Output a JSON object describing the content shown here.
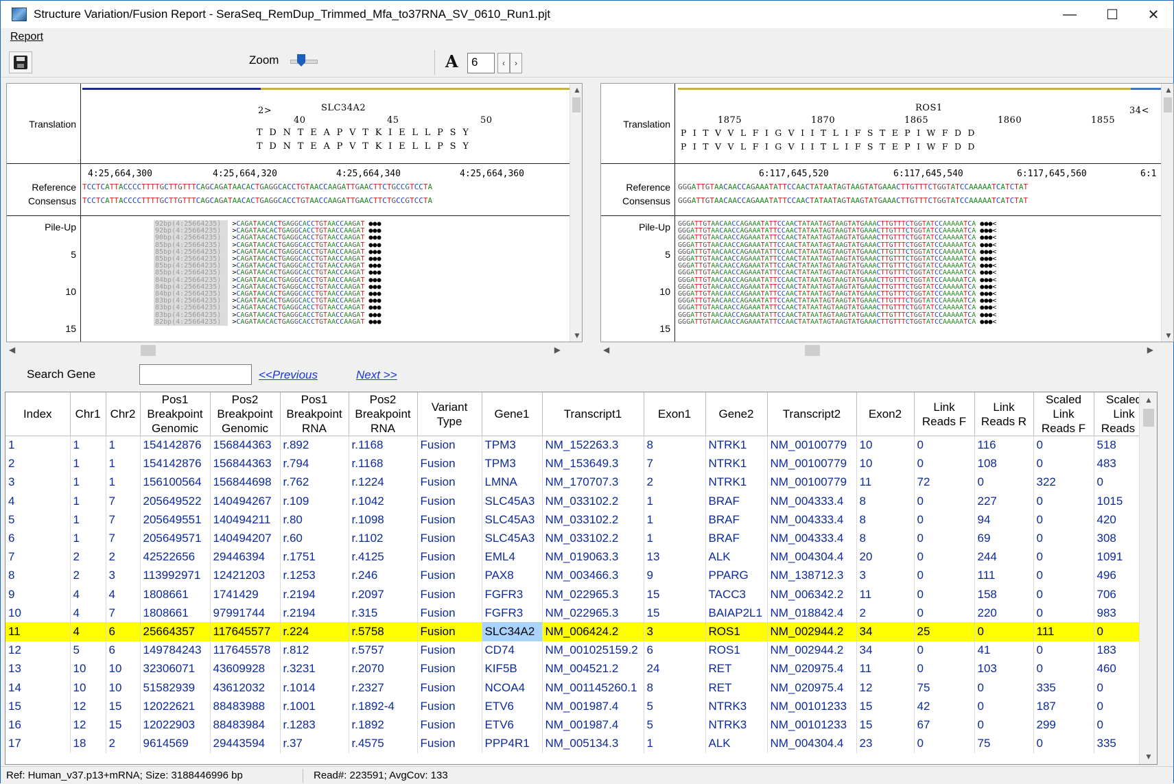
{
  "window": {
    "title": "Structure Variation/Fusion Report - SeraSeq_RemDup_Trimmed_Mfa_to37RNA_SV_0610_Run1.pjt",
    "minimize": "—",
    "maximize": "☐",
    "close": "✕"
  },
  "menu": {
    "report": "Report"
  },
  "toolbar": {
    "zoom_label": "Zoom",
    "font_icon": "A",
    "font_size": "6",
    "spin_left": "‹",
    "spin_right": "›"
  },
  "left_pane": {
    "label_translation": "Translation",
    "label_reference": "Reference",
    "label_consensus": "Consensus",
    "label_pileup": "Pile-Up",
    "row_numbers": [
      "5",
      "10",
      "15"
    ],
    "gene_marker": "2>",
    "gene": "SLC34A2",
    "aa_positions": [
      "40",
      "45",
      "50"
    ],
    "aa_row": "T  D  N  T  E  A  P  V  T  K  I  E  L  L  P  S  Y",
    "coords": [
      "4:25,664,300",
      "4:25,664,320",
      "4:25,664,340",
      "4:25,664,360"
    ],
    "reference": "TCCTCATTACCCCTTTTGCTTGTTTCAGCAGATAACACTGAGGCACCTGTAACCAAGATTGAACTTCTGCCGTCCTA",
    "consensus": "TCCTCATTACCCCTTTTGCTTGTTTCAGCAGATAACACTGAGGCACCTGTAACCAAGATTGAACTTCTGCCGTCCTA",
    "pile_labels": [
      "92bp(4:25664235)",
      "92bp(4:25664235)",
      "90bp(4:25664235)",
      "85bp(4:25664235)",
      "85bp(4:25664235)",
      "85bp(4:25664235)",
      "85bp(4:25664235)",
      "85bp(4:25664235)",
      "84bp(4:25664235)",
      "84bp(4:25664235)",
      "84bp(4:25664235)",
      "83bp(4:25664235)",
      "83bp(4:25664235)",
      "83bp(4:25664235)",
      "82bp(4:25664235)"
    ],
    "pile_read": ">CAGATAACACTGAGGCACCTGTAACCAAGAT ●●●"
  },
  "right_pane": {
    "label_translation": "Translation",
    "label_reference": "Reference",
    "label_consensus": "Consensus",
    "label_pileup": "Pile-Up",
    "row_numbers": [
      "5",
      "10",
      "15"
    ],
    "gene_marker": "34<",
    "gene": "ROS1",
    "aa_positions": [
      "1875",
      "1870",
      "1865",
      "1860",
      "1855"
    ],
    "aa_row": "P  I  T  V  V  L  F  I  G  V  I  I  T  L  I  F  S  T  E  P  I  W  F  D  D",
    "coords": [
      "6:117,645,520",
      "6:117,645,540",
      "6:117,645,560",
      "6:1"
    ],
    "reference": "GGGATTGTAACAACCAGAAATATTCCAACTATAATAGTAAGTATGAAACTTGTTTCTGGTATCCAAAAATCATCTAT",
    "consensus": "GGGATTGTAACAACCAGAAATATTCCAACTATAATAGTAAGTATGAAACTTGTTTCTGGTATCCAAAAATCATCTAT",
    "pile_read": "GGGATTGTAACAACCAGAAATATTCCAACTATAATAGTAAGTATGAAACTTGTTTCTGGTATCCAAAAATCA ●●●<"
  },
  "search": {
    "label": "Search Gene",
    "value": "",
    "previous": "<<Previous",
    "next": "Next >>"
  },
  "table": {
    "columns": [
      "Index",
      "Chr1",
      "Chr2",
      "Pos1 Breakpoint Genomic",
      "Pos2 Breakpoint Genomic",
      "Pos1 Breakpoint RNA",
      "Pos2 Breakpoint RNA",
      "Variant Type",
      "Gene1",
      "Transcript1",
      "Exon1",
      "Gene2",
      "Transcript2",
      "Exon2",
      "Link Reads F",
      "Link Reads R",
      "Scaled Link Reads F",
      "Scaled Link Reads R"
    ],
    "rows": [
      [
        "1",
        "1",
        "1",
        "154142876",
        "156844363",
        "r.892",
        "r.1168",
        "Fusion",
        "TPM3",
        "NM_152263.3",
        "8",
        "NTRK1",
        "NM_00100779",
        "10",
        "0",
        "116",
        "0",
        "518"
      ],
      [
        "2",
        "1",
        "1",
        "154142876",
        "156844363",
        "r.794",
        "r.1168",
        "Fusion",
        "TPM3",
        "NM_153649.3",
        "7",
        "NTRK1",
        "NM_00100779",
        "10",
        "0",
        "108",
        "0",
        "483"
      ],
      [
        "3",
        "1",
        "1",
        "156100564",
        "156844698",
        "r.762",
        "r.1224",
        "Fusion",
        "LMNA",
        "NM_170707.3",
        "2",
        "NTRK1",
        "NM_00100779",
        "11",
        "72",
        "0",
        "322",
        "0"
      ],
      [
        "4",
        "1",
        "7",
        "205649522",
        "140494267",
        "r.109",
        "r.1042",
        "Fusion",
        "SLC45A3",
        "NM_033102.2",
        "1",
        "BRAF",
        "NM_004333.4",
        "8",
        "0",
        "227",
        "0",
        "1015"
      ],
      [
        "5",
        "1",
        "7",
        "205649551",
        "140494211",
        "r.80",
        "r.1098",
        "Fusion",
        "SLC45A3",
        "NM_033102.2",
        "1",
        "BRAF",
        "NM_004333.4",
        "8",
        "0",
        "94",
        "0",
        "420"
      ],
      [
        "6",
        "1",
        "7",
        "205649571",
        "140494207",
        "r.60",
        "r.1102",
        "Fusion",
        "SLC45A3",
        "NM_033102.2",
        "1",
        "BRAF",
        "NM_004333.4",
        "8",
        "0",
        "69",
        "0",
        "308"
      ],
      [
        "7",
        "2",
        "2",
        "42522656",
        "29446394",
        "r.1751",
        "r.4125",
        "Fusion",
        "EML4",
        "NM_019063.3",
        "13",
        "ALK",
        "NM_004304.4",
        "20",
        "0",
        "244",
        "0",
        "1091"
      ],
      [
        "8",
        "2",
        "3",
        "113992971",
        "12421203",
        "r.1253",
        "r.246",
        "Fusion",
        "PAX8",
        "NM_003466.3",
        "9",
        "PPARG",
        "NM_138712.3",
        "3",
        "0",
        "111",
        "0",
        "496"
      ],
      [
        "9",
        "4",
        "4",
        "1808661",
        "1741429",
        "r.2194",
        "r.2097",
        "Fusion",
        "FGFR3",
        "NM_022965.3",
        "15",
        "TACC3",
        "NM_006342.2",
        "11",
        "0",
        "158",
        "0",
        "706"
      ],
      [
        "10",
        "4",
        "7",
        "1808661",
        "97991744",
        "r.2194",
        "r.315",
        "Fusion",
        "FGFR3",
        "NM_022965.3",
        "15",
        "BAIAP2L1",
        "NM_018842.4",
        "2",
        "0",
        "220",
        "0",
        "983"
      ],
      [
        "11",
        "4",
        "6",
        "25664357",
        "117645577",
        "r.224",
        "r.5758",
        "Fusion",
        "SLC34A2",
        "NM_006424.2",
        "3",
        "ROS1",
        "NM_002944.2",
        "34",
        "25",
        "0",
        "111",
        "0"
      ],
      [
        "12",
        "5",
        "6",
        "149784243",
        "117645578",
        "r.812",
        "r.5757",
        "Fusion",
        "CD74",
        "NM_001025159.2",
        "6",
        "ROS1",
        "NM_002944.2",
        "34",
        "0",
        "41",
        "0",
        "183"
      ],
      [
        "13",
        "10",
        "10",
        "32306071",
        "43609928",
        "r.3231",
        "r.2070",
        "Fusion",
        "KIF5B",
        "NM_004521.2",
        "24",
        "RET",
        "NM_020975.4",
        "11",
        "0",
        "103",
        "0",
        "460"
      ],
      [
        "14",
        "10",
        "10",
        "51582939",
        "43612032",
        "r.1014",
        "r.2327",
        "Fusion",
        "NCOA4",
        "NM_001145260.1",
        "8",
        "RET",
        "NM_020975.4",
        "12",
        "75",
        "0",
        "335",
        "0"
      ],
      [
        "15",
        "12",
        "15",
        "12022621",
        "88483988",
        "r.1001",
        "r.1892-4",
        "Fusion",
        "ETV6",
        "NM_001987.4",
        "5",
        "NTRK3",
        "NM_00101233",
        "15",
        "42",
        "0",
        "187",
        "0"
      ],
      [
        "16",
        "12",
        "15",
        "12022903",
        "88483984",
        "r.1283",
        "r.1892",
        "Fusion",
        "ETV6",
        "NM_001987.4",
        "5",
        "NTRK3",
        "NM_00101233",
        "15",
        "67",
        "0",
        "299",
        "0"
      ],
      [
        "17",
        "18",
        "2",
        "9614569",
        "29443594",
        "r.37",
        "r.4575",
        "Fusion",
        "PPP4R1",
        "NM_005134.3",
        "1",
        "ALK",
        "NM_004304.4",
        "23",
        "0",
        "75",
        "0",
        "335"
      ]
    ],
    "selected_index": "11"
  },
  "status": {
    "left": "Ref: Human_v37.p13+mRNA; Size: 3188446996 bp",
    "right": "Read#: 223591; AvgCov: 133"
  },
  "colors": {
    "selected_row": "#ffff00",
    "selected_cell": "#a9d3ff",
    "link": "#1a37d6",
    "cell_text": "#0d2a9a",
    "nt_A": "#1f8a1f",
    "nt_C": "#1c3fd1",
    "nt_G": "#555555",
    "nt_T": "#d42020"
  }
}
